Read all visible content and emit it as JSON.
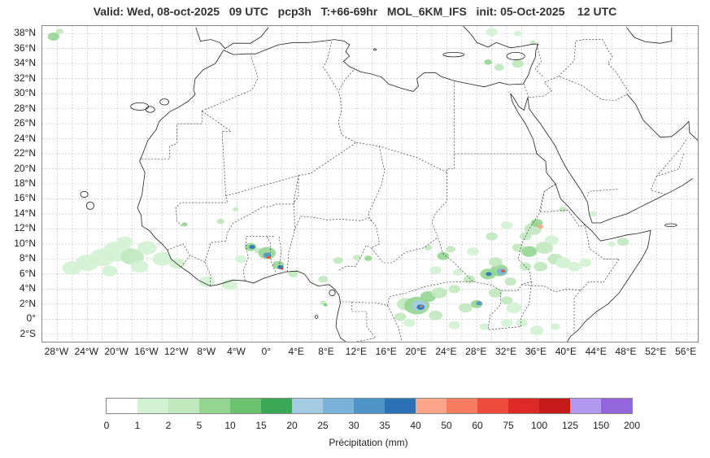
{
  "title": "Valid: Wed, 08-oct-2025   09 UTC   pcp3h   T:+66-69hr   MOL_6KM_IFS   init: 05-Oct-2025    12 UTC",
  "lat_labels": [
    "38°N",
    "36°N",
    "34°N",
    "32°N",
    "30°N",
    "28°N",
    "26°N",
    "24°N",
    "22°N",
    "20°N",
    "18°N",
    "16°N",
    "14°N",
    "12°N",
    "10°N",
    "8°N",
    "6°N",
    "4°N",
    "2°N",
    "0°",
    "2°S"
  ],
  "lon_labels": [
    "28°W",
    "24°W",
    "20°W",
    "16°W",
    "12°W",
    "8°W",
    "4°W",
    "0°",
    "4°E",
    "8°E",
    "12°E",
    "16°E",
    "20°E",
    "24°E",
    "28°E",
    "32°E",
    "36°E",
    "40°E",
    "44°E",
    "48°E",
    "52°E",
    "56°E"
  ],
  "colorbar": {
    "title": "Précipitation (mm)",
    "ticks": [
      "0",
      "1",
      "2",
      "5",
      "10",
      "15",
      "20",
      "25",
      "30",
      "35",
      "40",
      "50",
      "60",
      "75",
      "100",
      "125",
      "150",
      "200"
    ],
    "colors": [
      "#ffffff",
      "#d3f2d3",
      "#c0e8bc",
      "#95d592",
      "#6cc26f",
      "#3aa857",
      "#a5cbe3",
      "#7ab3d9",
      "#4f94c7",
      "#2a72b4",
      "#fba58a",
      "#f87c60",
      "#ef4b3c",
      "#dd2a27",
      "#c41a1c",
      "#b39af0",
      "#9466dc",
      "#4a0089"
    ]
  },
  "map_extent": {
    "lon_min": -30,
    "lon_max": 57.5,
    "lat_min": -3,
    "lat_max": 39
  }
}
